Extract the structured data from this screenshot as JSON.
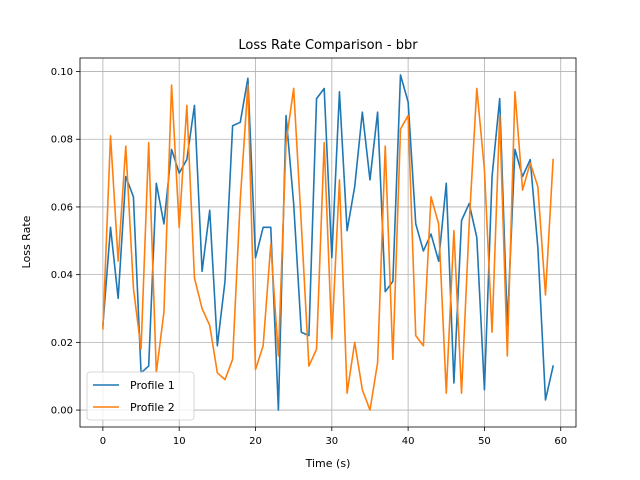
{
  "chart_data": {
    "type": "line",
    "title": "Loss Rate Comparison - bbr",
    "xlabel": "Time (s)",
    "ylabel": "Loss Rate",
    "xlim": [
      -3,
      62
    ],
    "ylim": [
      -0.005,
      0.104
    ],
    "xticks": [
      0,
      10,
      20,
      30,
      40,
      50,
      60
    ],
    "yticks": [
      0.0,
      0.02,
      0.04,
      0.06,
      0.08,
      0.1
    ],
    "ytick_labels": [
      "0.00",
      "0.02",
      "0.04",
      "0.06",
      "0.08",
      "0.10"
    ],
    "grid": true,
    "legend": "lower-left",
    "x": [
      0,
      1,
      2,
      3,
      4,
      5,
      6,
      7,
      8,
      9,
      10,
      11,
      12,
      13,
      14,
      15,
      16,
      17,
      18,
      19,
      20,
      21,
      22,
      23,
      24,
      25,
      26,
      27,
      28,
      29,
      30,
      31,
      32,
      33,
      34,
      35,
      36,
      37,
      38,
      39,
      40,
      41,
      42,
      43,
      44,
      45,
      46,
      47,
      48,
      49,
      50,
      51,
      52,
      53,
      54,
      55,
      56,
      57,
      58,
      59
    ],
    "series": [
      {
        "name": "Profile 1",
        "color": "#1f77b4",
        "values": [
          0.025,
          0.054,
          0.033,
          0.069,
          0.063,
          0.011,
          0.013,
          0.067,
          0.055,
          0.077,
          0.07,
          0.074,
          0.09,
          0.041,
          0.059,
          0.019,
          0.038,
          0.084,
          0.085,
          0.098,
          0.045,
          0.054,
          0.054,
          0.0,
          0.087,
          0.061,
          0.023,
          0.022,
          0.092,
          0.095,
          0.045,
          0.094,
          0.053,
          0.066,
          0.088,
          0.068,
          0.088,
          0.035,
          0.038,
          0.099,
          0.091,
          0.055,
          0.047,
          0.052,
          0.044,
          0.067,
          0.008,
          0.056,
          0.061,
          0.051,
          0.006,
          0.069,
          0.092,
          0.025,
          0.077,
          0.069,
          0.074,
          0.048,
          0.003,
          0.013
        ]
      },
      {
        "name": "Profile 2",
        "color": "#ff7f0e",
        "values": [
          0.024,
          0.081,
          0.044,
          0.078,
          0.036,
          0.018,
          0.079,
          0.011,
          0.029,
          0.096,
          0.054,
          0.09,
          0.039,
          0.03,
          0.025,
          0.011,
          0.009,
          0.015,
          0.062,
          0.096,
          0.012,
          0.019,
          0.049,
          0.016,
          0.079,
          0.095,
          0.055,
          0.013,
          0.018,
          0.079,
          0.021,
          0.068,
          0.005,
          0.02,
          0.006,
          0.0,
          0.014,
          0.078,
          0.015,
          0.083,
          0.087,
          0.022,
          0.019,
          0.063,
          0.055,
          0.005,
          0.053,
          0.005,
          0.055,
          0.095,
          0.071,
          0.023,
          0.087,
          0.016,
          0.094,
          0.065,
          0.073,
          0.066,
          0.034,
          0.074
        ]
      }
    ]
  }
}
